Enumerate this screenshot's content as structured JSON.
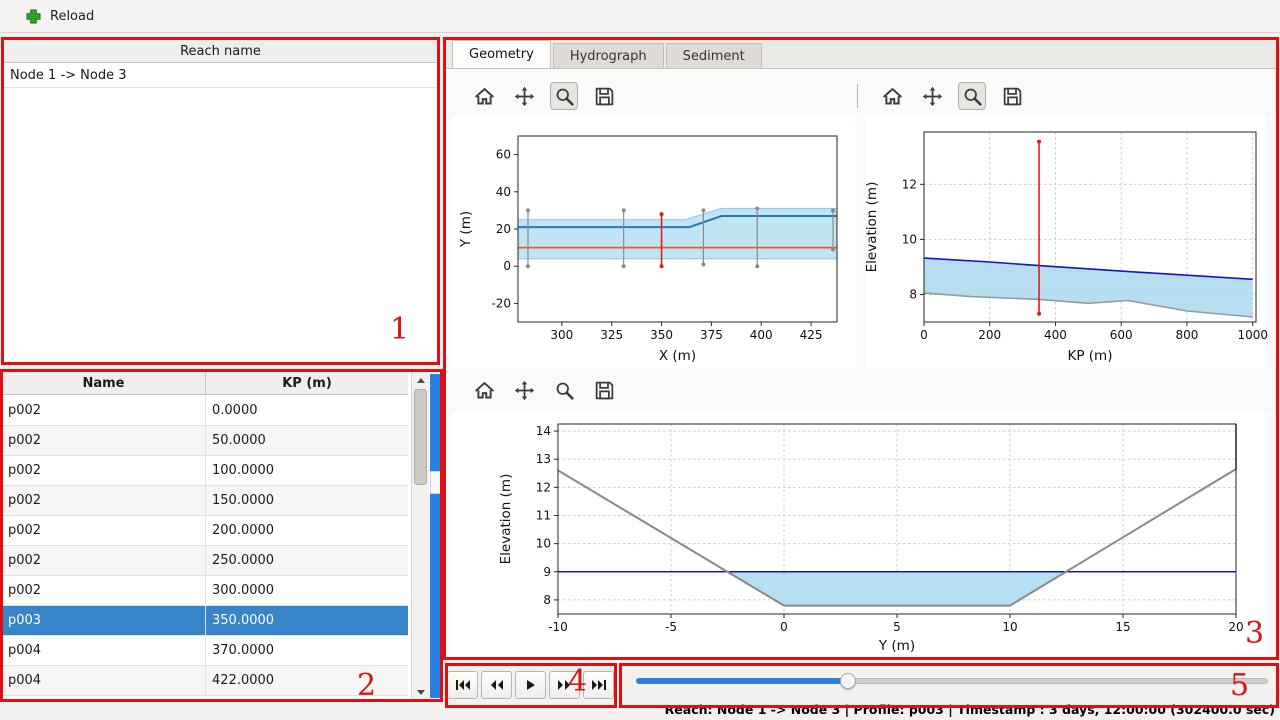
{
  "toolbar": {
    "reload_label": "Reload"
  },
  "reach_panel": {
    "header": "Reach name",
    "items": [
      "Node 1 -> Node 3"
    ]
  },
  "profile_table": {
    "columns": [
      "Name",
      "KP (m)"
    ],
    "selected_index": 7,
    "rows": [
      {
        "name": "p002",
        "kp": "0.0000"
      },
      {
        "name": "p002",
        "kp": "50.0000"
      },
      {
        "name": "p002",
        "kp": "100.0000"
      },
      {
        "name": "p002",
        "kp": "150.0000"
      },
      {
        "name": "p002",
        "kp": "200.0000"
      },
      {
        "name": "p002",
        "kp": "250.0000"
      },
      {
        "name": "p002",
        "kp": "300.0000"
      },
      {
        "name": "p003",
        "kp": "350.0000"
      },
      {
        "name": "p004",
        "kp": "370.0000"
      },
      {
        "name": "p004",
        "kp": "422.0000"
      }
    ]
  },
  "tabs": [
    {
      "label": "Geometry",
      "active": true
    },
    {
      "label": "Hydrograph",
      "active": false
    },
    {
      "label": "Sediment",
      "active": false
    }
  ],
  "chart_toolbar_icons": [
    "home-icon",
    "pan-icon",
    "zoom-icon",
    "save-icon"
  ],
  "transport": {
    "buttons": [
      "skip-to-start",
      "step-back",
      "play",
      "step-forward",
      "skip-to-end"
    ],
    "slider_value_pct": 33.5
  },
  "status_bar": {
    "text": "Reach: Node 1 -> Node 3 | Profile: p003 | Timestamp : 3 days, 12:00:00 (302400.0 sec)"
  },
  "annotations": {
    "labels": [
      "1",
      "2",
      "3",
      "4",
      "5"
    ]
  },
  "colors": {
    "accent_blue": "#3884c8",
    "slider_blue": "#2f7fe0",
    "annotation_red": "#dd1111",
    "water_fill": "#aedcf0",
    "water_line": "#1414c8",
    "bed_gray": "#8a8a8a",
    "marker_red": "#e41a1c",
    "centerline_orange": "#f05a28"
  },
  "chart_data": [
    {
      "id": "plan-view",
      "type": "line",
      "title": "",
      "xlabel": "X (m)",
      "ylabel": "Y (m)",
      "xlim": [
        278,
        438
      ],
      "ylim": [
        -30,
        70
      ],
      "xticks": [
        300,
        325,
        350,
        375,
        400,
        425
      ],
      "yticks": [
        -20,
        0,
        20,
        40,
        60
      ],
      "grid": false,
      "margins": {
        "l": 66,
        "r": 20,
        "t": 20,
        "b": 46
      },
      "fills": [
        {
          "name": "channel-band",
          "color": "#b5dff2",
          "opacity": 0.85,
          "points": [
            [
              278,
              4
            ],
            [
              438,
              4
            ],
            [
              438,
              31
            ],
            [
              380,
              31
            ],
            [
              362,
              25
            ],
            [
              278,
              25
            ]
          ]
        }
      ],
      "series": [
        {
          "name": "bank-outline-top",
          "color": "#8ecfe8",
          "width": 1.2,
          "points": [
            [
              278,
              25
            ],
            [
              362,
              25
            ],
            [
              380,
              31
            ],
            [
              438,
              31
            ]
          ]
        },
        {
          "name": "bank-outline-bottom",
          "color": "#8ecfe8",
          "width": 1.2,
          "points": [
            [
              278,
              4
            ],
            [
              438,
              4
            ]
          ]
        },
        {
          "name": "water-edge",
          "color": "#2878b5",
          "width": 2,
          "points": [
            [
              278,
              21
            ],
            [
              364,
              21
            ],
            [
              380,
              27
            ],
            [
              438,
              27
            ]
          ]
        },
        {
          "name": "centerline",
          "color": "#f05a28",
          "width": 1.8,
          "points": [
            [
              278,
              10
            ],
            [
              438,
              10
            ]
          ]
        }
      ],
      "vlines": [
        {
          "x": 283,
          "y0": 0,
          "y1": 30,
          "color": "#8a8a8a",
          "caps": true
        },
        {
          "x": 331,
          "y0": 0,
          "y1": 30,
          "color": "#8a8a8a",
          "caps": true
        },
        {
          "x": 350,
          "y0": 0,
          "y1": 28,
          "color": "#e41a1c",
          "caps": true,
          "width": 1.6
        },
        {
          "x": 371,
          "y0": 1,
          "y1": 30,
          "color": "#8a8a8a",
          "caps": true
        },
        {
          "x": 398,
          "y0": 0,
          "y1": 31,
          "color": "#8a8a8a",
          "caps": true
        },
        {
          "x": 436,
          "y0": 9,
          "y1": 30,
          "color": "#8a8a8a",
          "caps": true
        }
      ]
    },
    {
      "id": "longitudinal-profile",
      "type": "line",
      "title": "",
      "xlabel": "KP (m)",
      "ylabel": "Elevation (m)",
      "xlim": [
        0,
        1010
      ],
      "ylim": [
        7,
        13.9
      ],
      "xticks": [
        0,
        200,
        400,
        600,
        800,
        1000
      ],
      "yticks": [
        8,
        10,
        12
      ],
      "grid": true,
      "margins": {
        "l": 58,
        "r": 14,
        "t": 16,
        "b": 46
      },
      "fills": [
        {
          "name": "water-body",
          "color": "#aed9ee",
          "opacity": 0.9,
          "points": [
            [
              0,
              9.32
            ],
            [
              200,
              9.18
            ],
            [
              350,
              9.05
            ],
            [
              600,
              8.85
            ],
            [
              800,
              8.7
            ],
            [
              1000,
              8.55
            ],
            [
              1000,
              7.18
            ],
            [
              800,
              7.4
            ],
            [
              620,
              7.78
            ],
            [
              500,
              7.68
            ],
            [
              350,
              7.82
            ],
            [
              150,
              7.92
            ],
            [
              0,
              8.05
            ]
          ]
        }
      ],
      "series": [
        {
          "name": "water-surface",
          "color": "#1414c8",
          "width": 1.6,
          "points": [
            [
              0,
              9.32
            ],
            [
              200,
              9.18
            ],
            [
              350,
              9.05
            ],
            [
              600,
              8.85
            ],
            [
              800,
              8.7
            ],
            [
              1000,
              8.55
            ]
          ]
        },
        {
          "name": "bed-profile",
          "color": "#9b9b9b",
          "width": 1.6,
          "points": [
            [
              0,
              8.05
            ],
            [
              150,
              7.92
            ],
            [
              350,
              7.82
            ],
            [
              500,
              7.68
            ],
            [
              620,
              7.78
            ],
            [
              800,
              7.4
            ],
            [
              1000,
              7.18
            ]
          ]
        }
      ],
      "vlines": [
        {
          "x": 350,
          "y0": 7.3,
          "y1": 13.55,
          "color": "#e41a1c",
          "caps": true,
          "width": 1.6
        }
      ]
    },
    {
      "id": "cross-section",
      "type": "line",
      "title": "",
      "xlabel": "Y (m)",
      "ylabel": "Elevation (m)",
      "xlim": [
        -10,
        20
      ],
      "ylim": [
        7.5,
        14.25
      ],
      "xticks": [
        -10,
        -5,
        0,
        5,
        10,
        15,
        20
      ],
      "yticks": [
        8,
        9,
        10,
        11,
        12,
        13,
        14
      ],
      "grid": true,
      "margins": {
        "l": 106,
        "r": 34,
        "t": 12,
        "b": 44
      },
      "fills": [
        {
          "name": "water-area",
          "color": "#aedcf0",
          "opacity": 0.9,
          "points": [
            [
              -2.5,
              9
            ],
            [
              0,
              7.8
            ],
            [
              10,
              7.8
            ],
            [
              12.5,
              9
            ]
          ]
        }
      ],
      "series": [
        {
          "name": "water-level",
          "color": "#1414c8",
          "width": 1.5,
          "points": [
            [
              -10,
              9
            ],
            [
              20,
              9
            ]
          ]
        },
        {
          "name": "bed-profile",
          "color": "#8a8a8a",
          "width": 2,
          "points": [
            [
              -10,
              12.6
            ],
            [
              0,
              7.8
            ],
            [
              10,
              7.8
            ],
            [
              20,
              12.65
            ],
            [
              20,
              14.25
            ]
          ]
        }
      ],
      "vlines": []
    }
  ]
}
